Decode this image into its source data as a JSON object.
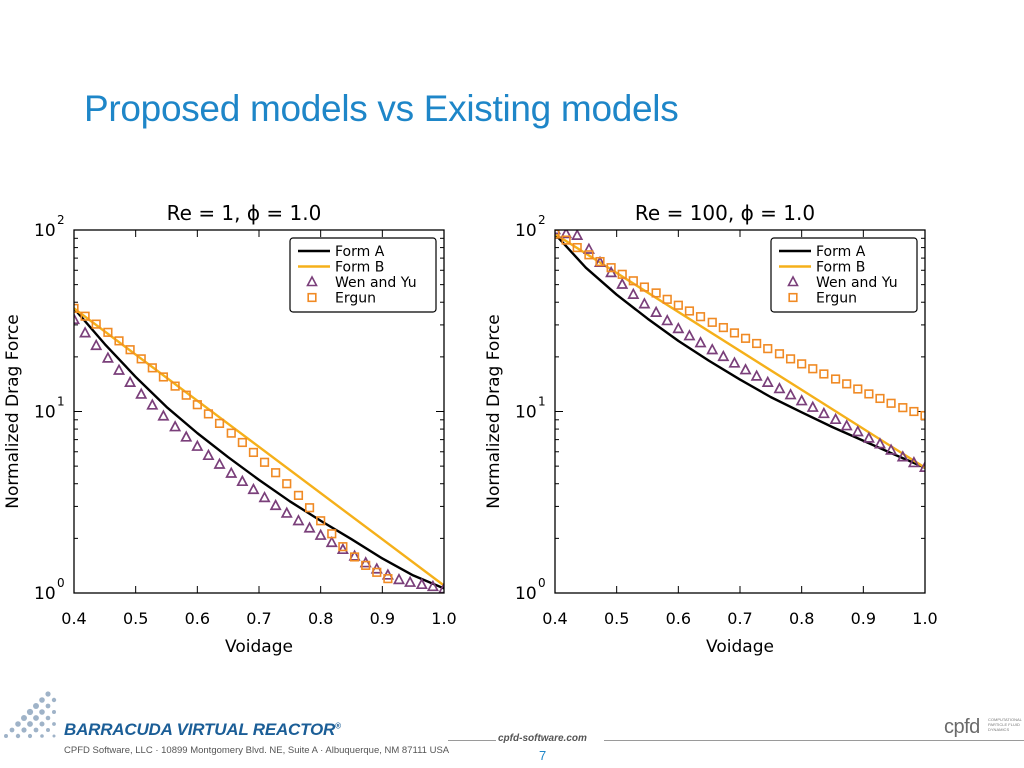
{
  "slide": {
    "title": "Proposed models vs Existing models",
    "page_number": "7"
  },
  "footer": {
    "brand": "BARRACUDA VIRTUAL REACTOR",
    "brand_mark": "®",
    "address": "CPFD Software, LLC · 10899 Montgomery Blvd. NE, Suite A · Albuquerque, NM 87111 USA",
    "website": "cpfd-software.com",
    "logo_text": "cpfd",
    "logo_subtext": "COMPUTATIONAL PARTICLE FLUID DYNAMICS"
  },
  "colors": {
    "title": "#1e86c8",
    "form_a": "#000000",
    "form_b": "#f5b01a",
    "wen_yu": "#7a3f7a",
    "ergun": "#f08a24"
  },
  "chart_data": [
    {
      "type": "line",
      "title": "Re =  1, ϕ = 1.0",
      "xlabel": "Voidage",
      "ylabel": "Normalized Drag Force",
      "xlim": [
        0.4,
        1.0
      ],
      "ylim": [
        1,
        100
      ],
      "yscale": "log",
      "xticks": [
        "0.4",
        "0.5",
        "0.6",
        "0.7",
        "0.8",
        "0.9",
        "1.0"
      ],
      "yticks": [
        {
          "base": "10",
          "exp": "0",
          "value": 1
        },
        {
          "base": "10",
          "exp": "1",
          "value": 10
        },
        {
          "base": "10",
          "exp": "2",
          "value": 100
        }
      ],
      "legend": {
        "position": "top-right"
      },
      "grid": false,
      "series": [
        {
          "name": "Form A",
          "kind": "line",
          "color": "#000000",
          "x": [
            0.4,
            0.45,
            0.5,
            0.55,
            0.6,
            0.65,
            0.7,
            0.75,
            0.8,
            0.85,
            0.9,
            0.95,
            1.0
          ],
          "y": [
            37,
            23.5,
            15.5,
            10.6,
            7.6,
            5.6,
            4.2,
            3.2,
            2.5,
            1.98,
            1.55,
            1.25,
            1.06
          ]
        },
        {
          "name": "Form B",
          "kind": "line",
          "color": "#f5b01a",
          "x": [
            0.4,
            1.0
          ],
          "y": [
            37,
            1.1
          ]
        },
        {
          "name": "Wen and Yu",
          "kind": "triangle",
          "color": "#7a3f7a",
          "x": [
            0.4,
            0.418,
            0.436,
            0.455,
            0.473,
            0.491,
            0.509,
            0.527,
            0.545,
            0.564,
            0.582,
            0.6,
            0.618,
            0.636,
            0.655,
            0.673,
            0.691,
            0.709,
            0.727,
            0.745,
            0.764,
            0.782,
            0.8,
            0.818,
            0.836,
            0.855,
            0.873,
            0.891,
            0.909,
            0.927,
            0.945,
            0.964,
            0.982,
            1.0
          ],
          "y": [
            32.0,
            27.0,
            23.0,
            19.6,
            16.8,
            14.4,
            12.4,
            10.8,
            9.4,
            8.2,
            7.2,
            6.4,
            5.7,
            5.1,
            4.55,
            4.1,
            3.7,
            3.34,
            3.02,
            2.74,
            2.49,
            2.27,
            2.07,
            1.89,
            1.73,
            1.59,
            1.46,
            1.35,
            1.25,
            1.18,
            1.14,
            1.11,
            1.08,
            1.05
          ]
        },
        {
          "name": "Ergun",
          "kind": "square",
          "color": "#f08a24",
          "x": [
            0.4,
            0.418,
            0.436,
            0.455,
            0.473,
            0.491,
            0.509,
            0.527,
            0.545,
            0.564,
            0.582,
            0.6,
            0.618,
            0.636,
            0.655,
            0.673,
            0.691,
            0.709,
            0.727,
            0.745,
            0.764,
            0.782,
            0.8,
            0.818,
            0.836,
            0.855,
            0.873,
            0.891,
            0.909
          ],
          "y": [
            37.0,
            33.5,
            30.3,
            27.3,
            24.5,
            21.9,
            19.5,
            17.4,
            15.5,
            13.8,
            12.3,
            10.9,
            9.7,
            8.6,
            7.6,
            6.75,
            5.95,
            5.25,
            4.6,
            4.0,
            3.45,
            2.95,
            2.5,
            2.12,
            1.8,
            1.58,
            1.42,
            1.3,
            1.2
          ]
        }
      ]
    },
    {
      "type": "line",
      "title": "Re = 100, ϕ = 1.0",
      "xlabel": "Voidage",
      "ylabel": "Normalized Drag Force",
      "xlim": [
        0.4,
        1.0
      ],
      "ylim": [
        1,
        100
      ],
      "yscale": "log",
      "xticks": [
        "0.4",
        "0.5",
        "0.6",
        "0.7",
        "0.8",
        "0.9",
        "1.0"
      ],
      "yticks": [
        {
          "base": "10",
          "exp": "0",
          "value": 1
        },
        {
          "base": "10",
          "exp": "1",
          "value": 10
        },
        {
          "base": "10",
          "exp": "2",
          "value": 100
        }
      ],
      "legend": {
        "position": "top-right"
      },
      "grid": false,
      "series": [
        {
          "name": "Form A",
          "kind": "line",
          "color": "#000000",
          "x": [
            0.4,
            0.45,
            0.5,
            0.55,
            0.6,
            0.65,
            0.7,
            0.75,
            0.8,
            0.85,
            0.9,
            0.95,
            1.0
          ],
          "y": [
            95,
            62,
            44,
            32.5,
            24.5,
            19.0,
            15.0,
            12.0,
            9.9,
            8.2,
            6.9,
            5.8,
            4.9
          ]
        },
        {
          "name": "Form B",
          "kind": "line",
          "color": "#f5b01a",
          "x": [
            0.4,
            1.0
          ],
          "y": [
            95,
            4.9
          ]
        },
        {
          "name": "Wen and Yu",
          "kind": "triangle",
          "color": "#7a3f7a",
          "x": [
            0.4,
            0.418,
            0.436,
            0.455,
            0.473,
            0.491,
            0.509,
            0.527,
            0.545,
            0.564,
            0.582,
            0.6,
            0.618,
            0.636,
            0.655,
            0.673,
            0.691,
            0.709,
            0.727,
            0.745,
            0.764,
            0.782,
            0.8,
            0.818,
            0.836,
            0.855,
            0.873,
            0.891,
            0.909,
            0.927,
            0.945,
            0.964,
            0.982,
            1.0
          ],
          "y": [
            100,
            95,
            93,
            78,
            66,
            58,
            50,
            44,
            39,
            35,
            31.5,
            28.5,
            26.0,
            23.8,
            21.8,
            20.0,
            18.4,
            16.9,
            15.6,
            14.4,
            13.3,
            12.3,
            11.4,
            10.5,
            9.7,
            9.0,
            8.3,
            7.7,
            7.1,
            6.6,
            6.1,
            5.6,
            5.2,
            4.9
          ]
        },
        {
          "name": "Ergun",
          "kind": "square",
          "color": "#f08a24",
          "x": [
            0.4,
            0.418,
            0.436,
            0.455,
            0.473,
            0.491,
            0.509,
            0.527,
            0.545,
            0.564,
            0.582,
            0.6,
            0.618,
            0.636,
            0.655,
            0.673,
            0.691,
            0.709,
            0.727,
            0.745,
            0.764,
            0.782,
            0.8,
            0.818,
            0.836,
            0.855,
            0.873,
            0.891,
            0.909,
            0.927,
            0.945,
            0.964,
            0.982,
            1.0
          ],
          "y": [
            95,
            88,
            80,
            73,
            67,
            62,
            57,
            52.5,
            48.5,
            45,
            41.5,
            38.5,
            35.8,
            33.3,
            31.0,
            29.0,
            27.1,
            25.3,
            23.7,
            22.2,
            20.8,
            19.5,
            18.3,
            17.2,
            16.1,
            15.1,
            14.2,
            13.3,
            12.5,
            11.8,
            11.1,
            10.5,
            10.0,
            9.5
          ]
        }
      ]
    }
  ]
}
